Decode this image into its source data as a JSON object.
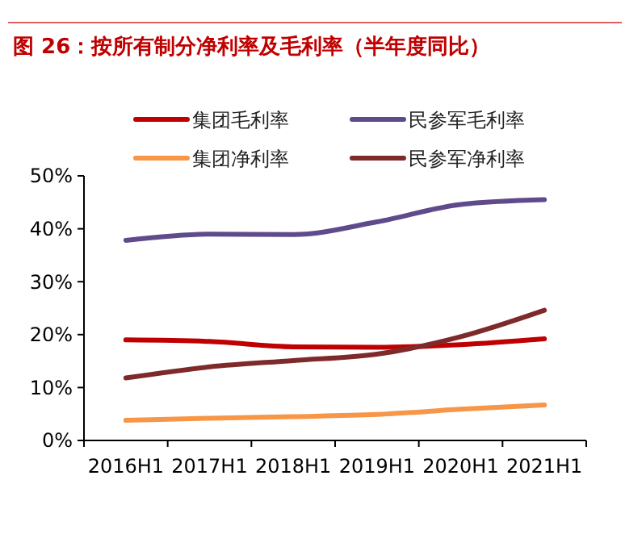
{
  "chart_data": {
    "type": "line",
    "title": "图 26：按所有制分净利率及毛利率（半年度同比）",
    "categories": [
      "2016H1",
      "2017H1",
      "2018H1",
      "2019H1",
      "2020H1",
      "2021H1"
    ],
    "series": [
      {
        "name": "集团毛利率",
        "color": "#c00000",
        "values": [
          19.0,
          18.7,
          17.7,
          17.6,
          18.1,
          19.2
        ]
      },
      {
        "name": "民参军毛利率",
        "color": "#5f4b8b",
        "values": [
          37.8,
          39.0,
          38.9,
          41.3,
          44.6,
          45.5
        ]
      },
      {
        "name": "集团净利率",
        "color": "#f79646",
        "values": [
          3.8,
          4.2,
          4.5,
          4.9,
          5.9,
          6.7
        ]
      },
      {
        "name": "民参军净利率",
        "color": "#7f2a2a",
        "values": [
          11.8,
          13.9,
          15.1,
          16.3,
          19.6,
          24.6
        ]
      }
    ],
    "ylim": [
      0,
      50
    ],
    "yticks": [
      {
        "value": 0,
        "label": "0%"
      },
      {
        "value": 10,
        "label": "10%"
      },
      {
        "value": 20,
        "label": "20%"
      },
      {
        "value": 30,
        "label": "30%"
      },
      {
        "value": 40,
        "label": "40%"
      },
      {
        "value": 50,
        "label": "50%"
      }
    ],
    "grid": false,
    "legend": "top",
    "marker": "none",
    "line_style": "solid"
  }
}
